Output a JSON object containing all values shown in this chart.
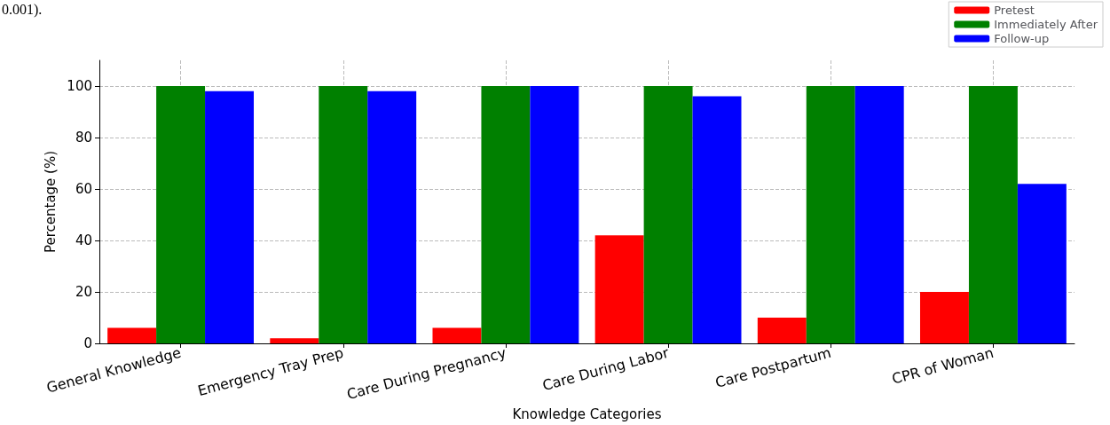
{
  "chart_data": {
    "type": "bar",
    "xlabel": "Knowledge Categories",
    "ylabel": "Percentage (%)",
    "annotations": [
      "0.001)."
    ],
    "categories": [
      "General Knowledge",
      "Emergency Tray Prep",
      "Care During Pregnancy",
      "Care During Labor",
      "Care Postpartum",
      "CPR of Woman"
    ],
    "series": [
      {
        "name": "Pretest",
        "color": "#ff0000",
        "values": [
          6,
          2,
          6,
          42,
          10,
          20
        ]
      },
      {
        "name": "Immediately After",
        "color": "#008000",
        "values": [
          100,
          100,
          100,
          100,
          100,
          100
        ]
      },
      {
        "name": "Follow-up",
        "color": "#0000ff",
        "values": [
          98,
          98,
          100,
          96,
          100,
          62
        ]
      }
    ],
    "ylim": [
      0,
      110
    ],
    "yticks": [
      0,
      20,
      40,
      60,
      80,
      100
    ],
    "grid": true,
    "legend": "top right"
  }
}
